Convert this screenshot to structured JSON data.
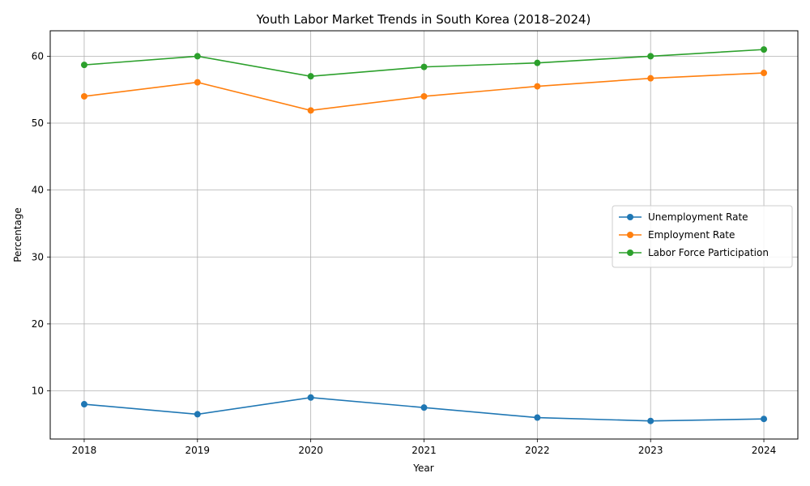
{
  "chart_data": {
    "type": "line",
    "title": "Youth Labor Market Trends in South Korea (2018–2024)",
    "xlabel": "Year",
    "ylabel": "Percentage",
    "x": [
      "2018",
      "2019",
      "2020",
      "2021",
      "2022",
      "2023",
      "2024"
    ],
    "xlim": [
      2017.7,
      2024.3
    ],
    "ylim": [
      2.8,
      63.8
    ],
    "yticks": [
      "10",
      "20",
      "30",
      "40",
      "50",
      "60"
    ],
    "grid": true,
    "legend_position": "center-right",
    "series": [
      {
        "name": "Unemployment Rate",
        "color": "#1f77b4",
        "values": [
          8.0,
          6.5,
          9.0,
          7.5,
          6.0,
          5.5,
          5.8
        ]
      },
      {
        "name": "Employment Rate",
        "color": "#ff7f0e",
        "values": [
          54.0,
          56.1,
          51.9,
          54.0,
          55.5,
          56.7,
          57.5
        ]
      },
      {
        "name": "Labor Force Participation",
        "color": "#2ca02c",
        "values": [
          58.7,
          60.0,
          57.0,
          58.4,
          59.0,
          60.0,
          61.0
        ]
      }
    ]
  }
}
